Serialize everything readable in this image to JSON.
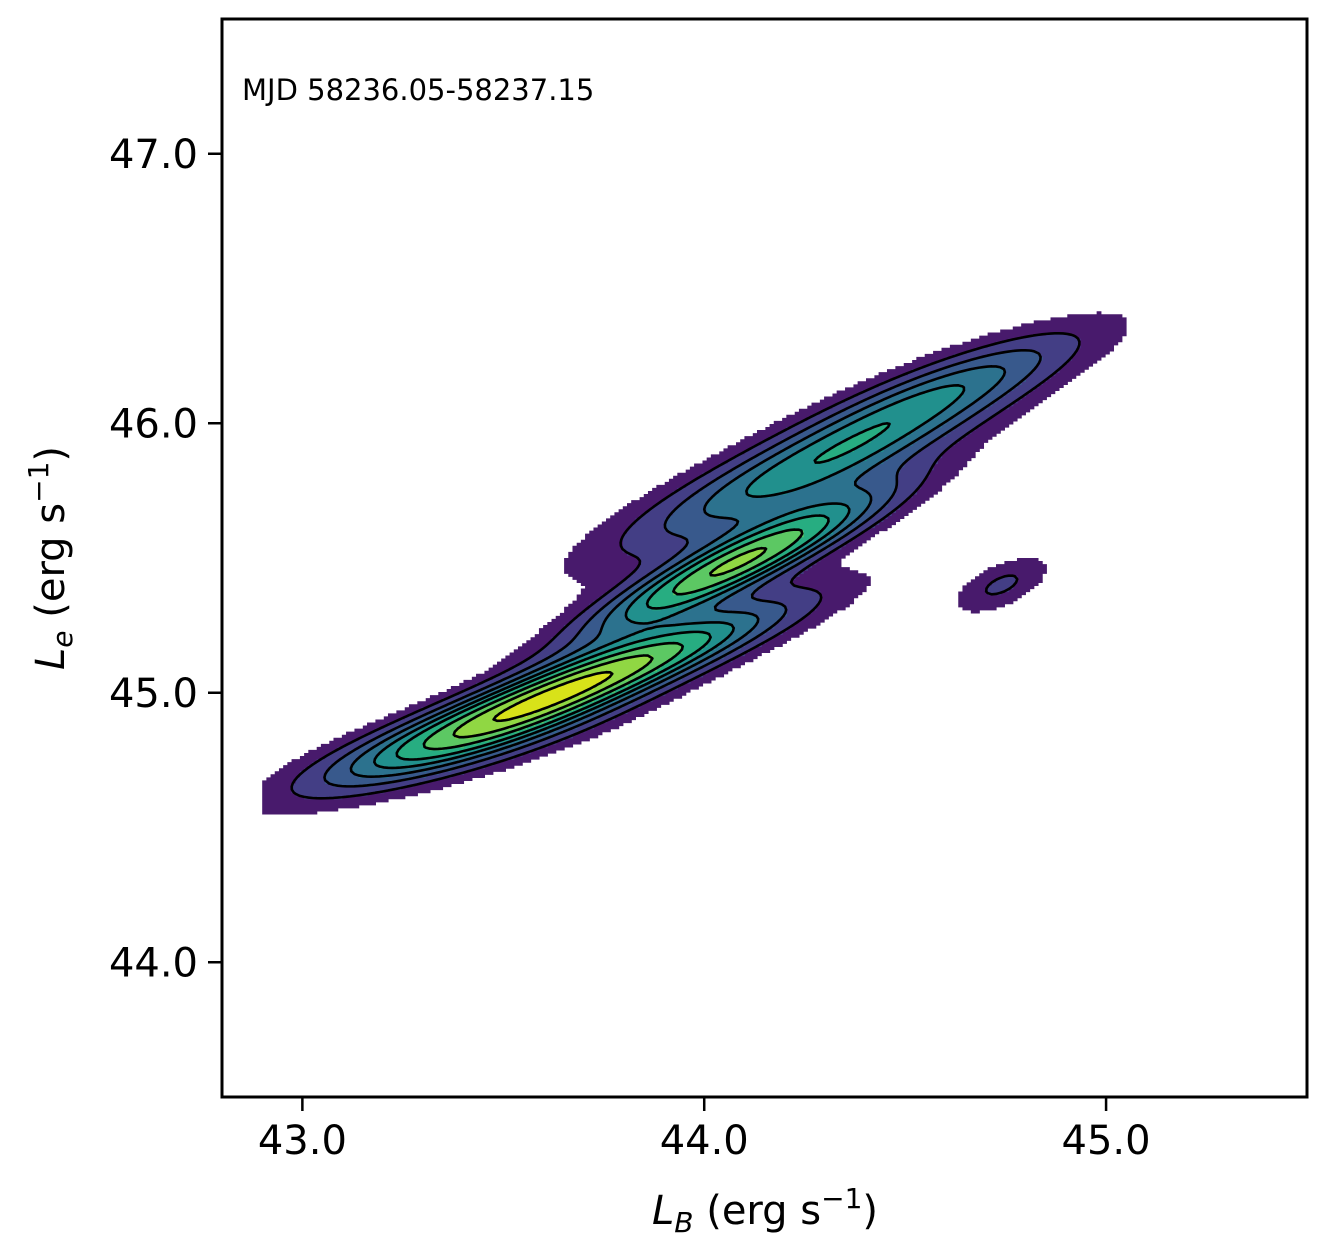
{
  "chart_data": {
    "type": "contour",
    "annotation": "MJD 58236.05-58237.15",
    "xlabel": {
      "symbol": "L",
      "subscript": "B",
      "units": " (erg s",
      "exp": "−1",
      "close": ")"
    },
    "ylabel": {
      "symbol": "L",
      "subscript": "e",
      "units": " (erg s",
      "exp": "−1",
      "close": ")"
    },
    "xlim": [
      42.8,
      45.5
    ],
    "ylim": [
      43.5,
      47.5
    ],
    "xticks": [
      43.0,
      44.0,
      45.0
    ],
    "xtick_labels": [
      "43.0",
      "44.0",
      "45.0"
    ],
    "yticks": [
      44.0,
      45.0,
      46.0,
      47.0
    ],
    "ytick_labels": [
      "44.0",
      "45.0",
      "46.0",
      "47.0"
    ],
    "grid": false,
    "colormap": "viridis",
    "colors": {
      "level0": "#481a6c",
      "level1": "#433e85",
      "level2": "#38598c",
      "level3": "#2c728e",
      "level4": "#21908d",
      "level5": "#27ad81",
      "level6": "#5cc863",
      "level7": "#90d743",
      "level8": "#d8e219",
      "line": "#000000"
    },
    "density_components": [
      {
        "center": [
          43.72,
          45.05
        ],
        "sigma_major": 0.36,
        "sigma_minor": 0.065,
        "angle_deg": 29,
        "weight": 1.0
      },
      {
        "center": [
          44.08,
          45.48
        ],
        "sigma_major": 0.3,
        "sigma_minor": 0.06,
        "angle_deg": 35,
        "weight": 0.95
      },
      {
        "center": [
          44.28,
          45.85
        ],
        "sigma_major": 0.38,
        "sigma_minor": 0.085,
        "angle_deg": 33,
        "weight": 0.62
      },
      {
        "center": [
          43.4,
          44.82
        ],
        "sigma_major": 0.3,
        "sigma_minor": 0.075,
        "angle_deg": 24,
        "weight": 0.45
      },
      {
        "center": [
          44.62,
          46.15
        ],
        "sigma_major": 0.28,
        "sigma_minor": 0.07,
        "angle_deg": 30,
        "weight": 0.3
      },
      {
        "center": [
          44.74,
          45.4
        ],
        "sigma_major": 0.1,
        "sigma_minor": 0.05,
        "angle_deg": 40,
        "weight": 0.22
      }
    ],
    "contour_levels": [
      0.08,
      0.17,
      0.27,
      0.37,
      0.47,
      0.57,
      0.69,
      0.81,
      0.93
    ]
  }
}
